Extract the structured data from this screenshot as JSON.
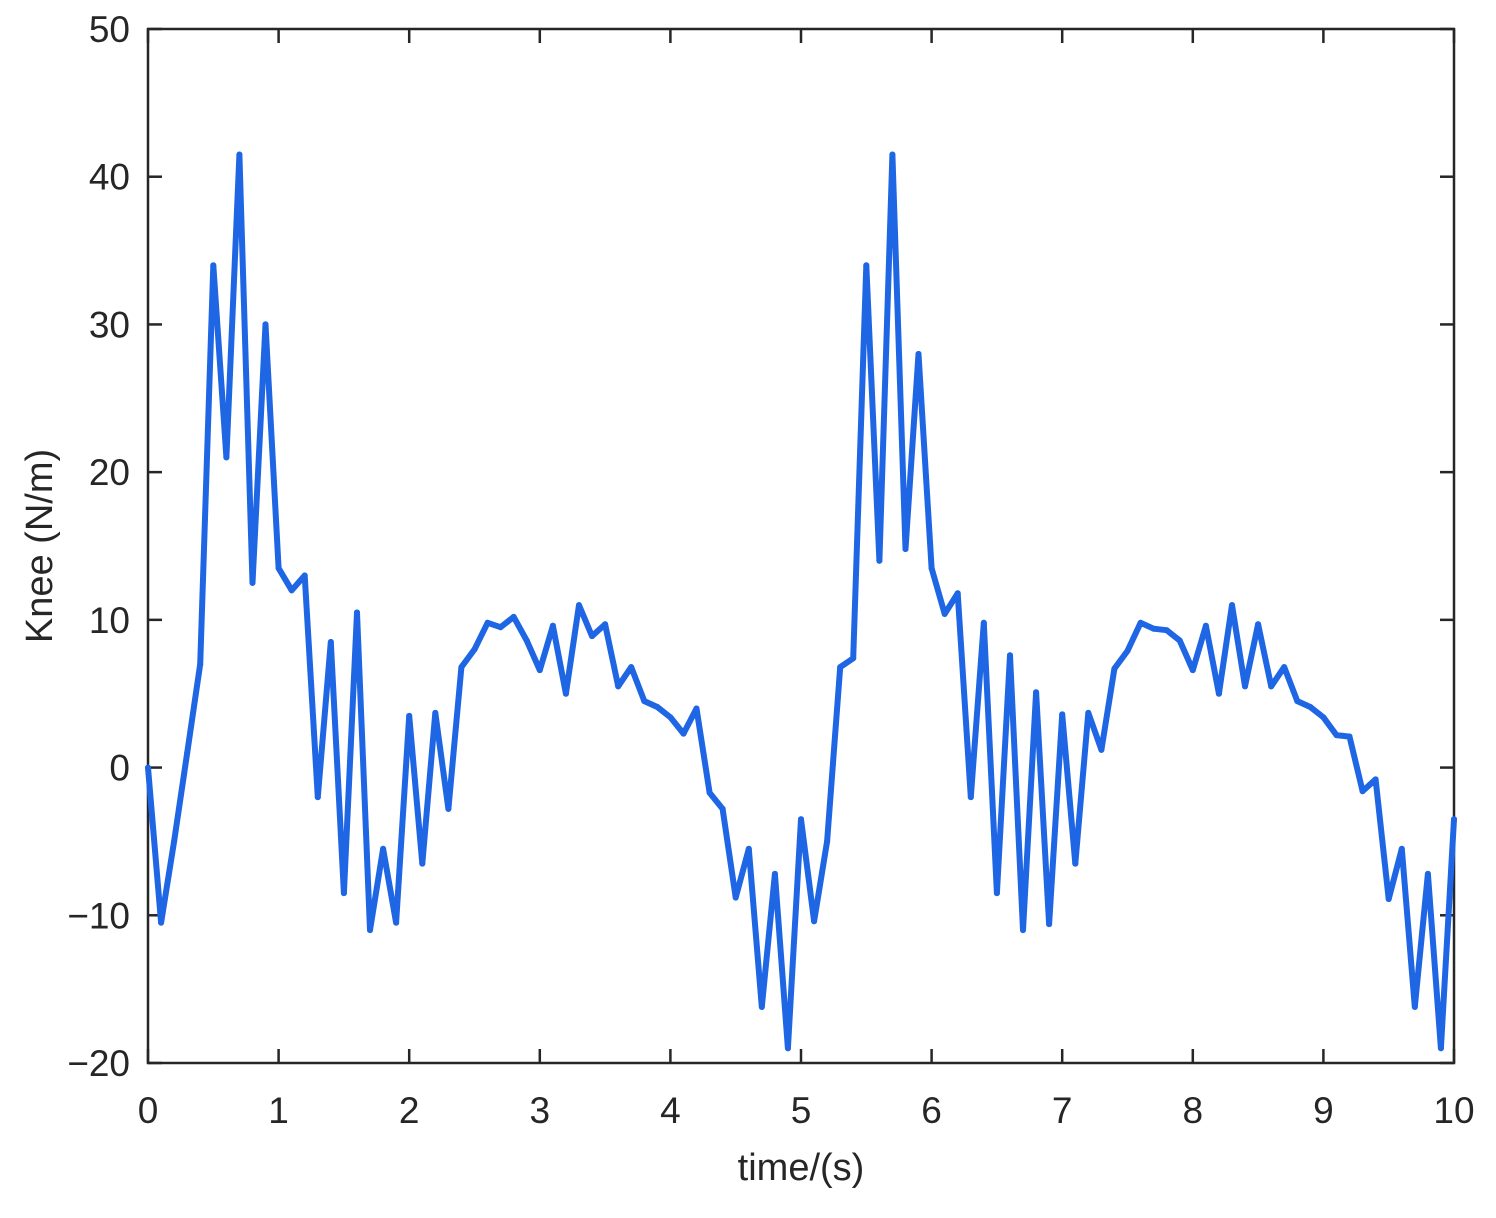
{
  "chart_data": {
    "type": "line",
    "title": "",
    "xlabel": "time/(s)",
    "ylabel": "Knee (N/m)",
    "xlim": [
      0,
      10
    ],
    "ylim": [
      -20,
      50
    ],
    "xticks": [
      0,
      1,
      2,
      3,
      4,
      5,
      6,
      7,
      8,
      9,
      10
    ],
    "yticks": [
      -20,
      -10,
      0,
      10,
      20,
      30,
      40,
      50
    ],
    "xtick_labels": [
      "0",
      "1",
      "2",
      "3",
      "4",
      "5",
      "6",
      "7",
      "8",
      "9",
      "10"
    ],
    "ytick_labels": [
      "−20",
      "−10",
      "0",
      "10",
      "20",
      "30",
      "40",
      "50"
    ],
    "grid": false,
    "legend": "none",
    "box": true,
    "series": [
      {
        "color": "#1f66e5",
        "x": [
          0,
          0.1,
          0.2,
          0.3,
          0.4,
          0.5,
          0.6,
          0.7,
          0.8,
          0.9,
          1.0,
          1.1,
          1.2,
          1.3,
          1.4,
          1.5,
          1.6,
          1.7,
          1.8,
          1.9,
          2.0,
          2.1,
          2.2,
          2.3,
          2.4,
          2.5,
          2.6,
          2.7,
          2.8,
          2.9,
          3.0,
          3.1,
          3.2,
          3.3,
          3.4,
          3.5,
          3.6,
          3.7,
          3.8,
          3.9,
          4.0,
          4.1,
          4.2,
          4.3,
          4.4,
          4.5,
          4.6,
          4.7,
          4.8,
          4.9,
          5.0,
          5.1,
          5.2,
          5.3,
          5.4,
          5.5,
          5.6,
          5.7,
          5.8,
          5.9,
          6.0,
          6.1,
          6.2,
          6.3,
          6.4,
          6.5,
          6.6,
          6.7,
          6.8,
          6.9,
          7.0,
          7.1,
          7.2,
          7.3,
          7.4,
          7.5,
          7.6,
          7.7,
          7.8,
          7.9,
          8.0,
          8.1,
          8.2,
          8.3,
          8.4,
          8.5,
          8.6,
          8.7,
          8.8,
          8.9,
          9.0,
          9.1,
          9.2,
          9.3,
          9.4,
          9.5,
          9.6,
          9.7,
          9.8,
          9.9,
          10.0
        ],
        "y": [
          0,
          -10.5,
          -5,
          1,
          7,
          34,
          21,
          41.5,
          12.5,
          30,
          13.5,
          12,
          13,
          -2,
          8.5,
          -8.5,
          10.5,
          -11,
          -5.5,
          -10.5,
          3.5,
          -6.5,
          3.7,
          -2.8,
          6.8,
          8,
          9.8,
          9.5,
          10.2,
          8.6,
          6.6,
          9.6,
          5,
          11,
          8.9,
          9.7,
          5.5,
          6.8,
          4.5,
          4.1,
          3.4,
          2.3,
          4,
          -1.7,
          -2.8,
          -8.8,
          -5.5,
          -16.2,
          -7.2,
          -19,
          -3.5,
          -10.4,
          -5,
          6.8,
          7.4,
          34,
          14,
          41.5,
          14.8,
          28,
          13.5,
          10.4,
          11.8,
          -2,
          9.8,
          -8.5,
          7.6,
          -11,
          5.1,
          -10.6,
          3.6,
          -6.5,
          3.7,
          1.2,
          6.7,
          7.9,
          9.8,
          9.4,
          9.3,
          8.6,
          6.6,
          9.6,
          5,
          11,
          5.5,
          9.7,
          5.5,
          6.8,
          4.5,
          4.1,
          3.4,
          2.2,
          2.1,
          -1.6,
          -0.8,
          -8.9,
          -5.5,
          -16.2,
          -7.2,
          -19,
          -3.5
        ]
      }
    ]
  }
}
